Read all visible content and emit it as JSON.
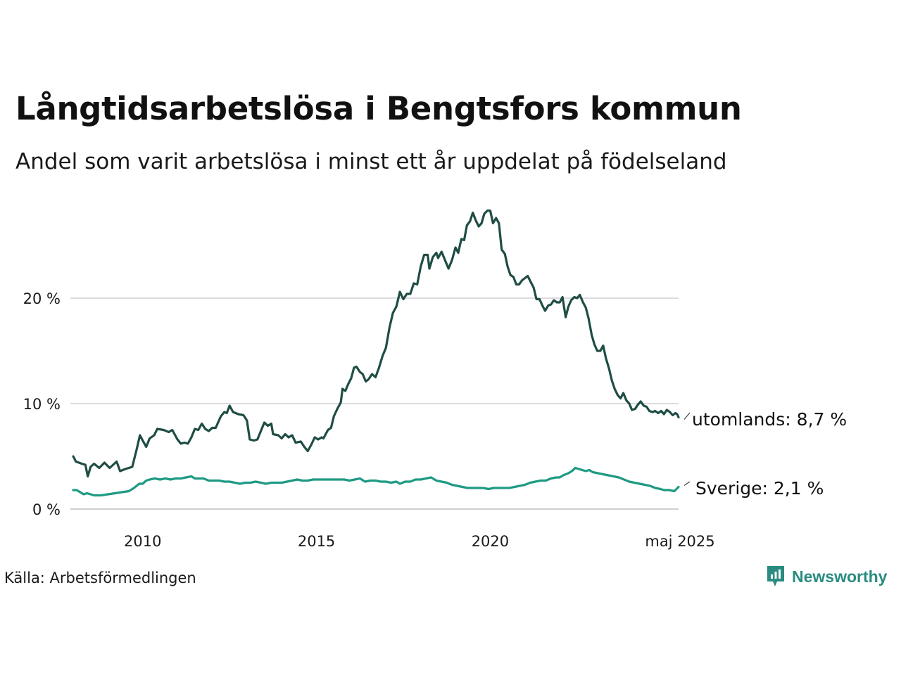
{
  "title": "Långtidsarbetslösa i Bengtsfors kommun",
  "subtitle": "Andel som varit arbetslösa i minst ett år uppdelat på födelseland",
  "source": "Källa: Arbetsförmedlingen",
  "brand": {
    "name": "Newsworthy",
    "icon": "newsworthy-logo-icon",
    "color": "#2a8c80"
  },
  "chart_data": {
    "type": "line",
    "x_ticks": [
      "2010",
      "2015",
      "2020",
      "maj 2025"
    ],
    "y_ticks": [
      "0 %",
      "10 %",
      "20 %"
    ],
    "ylim": [
      0,
      30
    ],
    "xlim": [
      2008.0,
      2025.42
    ],
    "grid": true,
    "series": [
      {
        "name": "utomlands",
        "end_label": "utomlands: 8,7 %",
        "color": "#1f4d45",
        "points": [
          [
            2008.0,
            5.0
          ],
          [
            2008.08,
            4.5
          ],
          [
            2008.25,
            4.3
          ],
          [
            2008.35,
            4.2
          ],
          [
            2008.42,
            3.1
          ],
          [
            2008.5,
            4.0
          ],
          [
            2008.6,
            4.3
          ],
          [
            2008.75,
            3.9
          ],
          [
            2008.9,
            4.4
          ],
          [
            2009.05,
            3.9
          ],
          [
            2009.25,
            4.5
          ],
          [
            2009.35,
            3.6
          ],
          [
            2009.5,
            3.8
          ],
          [
            2009.6,
            3.9
          ],
          [
            2009.7,
            4.0
          ],
          [
            2009.83,
            5.7
          ],
          [
            2009.92,
            7.0
          ],
          [
            2010.0,
            6.5
          ],
          [
            2010.1,
            5.9
          ],
          [
            2010.2,
            6.7
          ],
          [
            2010.33,
            7.0
          ],
          [
            2010.42,
            7.6
          ],
          [
            2010.6,
            7.5
          ],
          [
            2010.75,
            7.3
          ],
          [
            2010.85,
            7.5
          ],
          [
            2011.0,
            6.6
          ],
          [
            2011.1,
            6.2
          ],
          [
            2011.2,
            6.3
          ],
          [
            2011.3,
            6.2
          ],
          [
            2011.4,
            6.8
          ],
          [
            2011.5,
            7.6
          ],
          [
            2011.6,
            7.5
          ],
          [
            2011.7,
            8.1
          ],
          [
            2011.8,
            7.6
          ],
          [
            2011.9,
            7.4
          ],
          [
            2012.0,
            7.7
          ],
          [
            2012.1,
            7.7
          ],
          [
            2012.25,
            8.8
          ],
          [
            2012.35,
            9.2
          ],
          [
            2012.42,
            9.1
          ],
          [
            2012.5,
            9.8
          ],
          [
            2012.6,
            9.2
          ],
          [
            2012.75,
            9.0
          ],
          [
            2012.9,
            8.9
          ],
          [
            2013.0,
            8.4
          ],
          [
            2013.08,
            6.6
          ],
          [
            2013.2,
            6.5
          ],
          [
            2013.3,
            6.6
          ],
          [
            2013.4,
            7.4
          ],
          [
            2013.5,
            8.2
          ],
          [
            2013.6,
            7.9
          ],
          [
            2013.7,
            8.1
          ],
          [
            2013.75,
            7.1
          ],
          [
            2013.9,
            7.0
          ],
          [
            2014.0,
            6.7
          ],
          [
            2014.1,
            7.1
          ],
          [
            2014.2,
            6.8
          ],
          [
            2014.3,
            7.0
          ],
          [
            2014.4,
            6.3
          ],
          [
            2014.55,
            6.4
          ],
          [
            2014.65,
            5.9
          ],
          [
            2014.75,
            5.5
          ],
          [
            2014.85,
            6.1
          ],
          [
            2014.95,
            6.8
          ],
          [
            2015.05,
            6.6
          ],
          [
            2015.15,
            6.8
          ],
          [
            2015.2,
            6.7
          ],
          [
            2015.33,
            7.5
          ],
          [
            2015.42,
            7.7
          ],
          [
            2015.5,
            8.8
          ],
          [
            2015.6,
            9.5
          ],
          [
            2015.7,
            10.1
          ],
          [
            2015.75,
            11.4
          ],
          [
            2015.83,
            11.2
          ],
          [
            2015.92,
            11.9
          ],
          [
            2016.0,
            12.4
          ],
          [
            2016.08,
            13.4
          ],
          [
            2016.15,
            13.5
          ],
          [
            2016.25,
            13.0
          ],
          [
            2016.33,
            12.8
          ],
          [
            2016.42,
            12.1
          ],
          [
            2016.5,
            12.3
          ],
          [
            2016.6,
            12.8
          ],
          [
            2016.7,
            12.5
          ],
          [
            2016.8,
            13.4
          ],
          [
            2016.9,
            14.5
          ],
          [
            2017.0,
            15.3
          ],
          [
            2017.1,
            17.2
          ],
          [
            2017.2,
            18.6
          ],
          [
            2017.3,
            19.2
          ],
          [
            2017.4,
            20.6
          ],
          [
            2017.5,
            19.9
          ],
          [
            2017.6,
            20.4
          ],
          [
            2017.7,
            20.4
          ],
          [
            2017.8,
            21.4
          ],
          [
            2017.9,
            21.3
          ],
          [
            2018.0,
            23.0
          ],
          [
            2018.1,
            24.1
          ],
          [
            2018.2,
            24.1
          ],
          [
            2018.25,
            22.8
          ],
          [
            2018.35,
            23.9
          ],
          [
            2018.45,
            24.3
          ],
          [
            2018.5,
            23.8
          ],
          [
            2018.6,
            24.4
          ],
          [
            2018.7,
            23.6
          ],
          [
            2018.8,
            22.8
          ],
          [
            2018.9,
            23.6
          ],
          [
            2019.0,
            24.8
          ],
          [
            2019.08,
            24.3
          ],
          [
            2019.17,
            25.6
          ],
          [
            2019.25,
            25.5
          ],
          [
            2019.33,
            26.9
          ],
          [
            2019.42,
            27.3
          ],
          [
            2019.5,
            28.1
          ],
          [
            2019.58,
            27.4
          ],
          [
            2019.67,
            26.8
          ],
          [
            2019.75,
            27.1
          ],
          [
            2019.83,
            28.0
          ],
          [
            2019.92,
            28.3
          ],
          [
            2020.0,
            28.3
          ],
          [
            2020.08,
            27.1
          ],
          [
            2020.17,
            27.6
          ],
          [
            2020.25,
            27.1
          ],
          [
            2020.33,
            24.6
          ],
          [
            2020.42,
            24.2
          ],
          [
            2020.5,
            23.0
          ],
          [
            2020.58,
            22.2
          ],
          [
            2020.67,
            22.0
          ],
          [
            2020.75,
            21.3
          ],
          [
            2020.83,
            21.3
          ],
          [
            2020.92,
            21.7
          ],
          [
            2021.0,
            21.9
          ],
          [
            2021.08,
            22.1
          ],
          [
            2021.17,
            21.5
          ],
          [
            2021.25,
            21.0
          ],
          [
            2021.33,
            19.9
          ],
          [
            2021.42,
            19.9
          ],
          [
            2021.5,
            19.3
          ],
          [
            2021.58,
            18.8
          ],
          [
            2021.67,
            19.3
          ],
          [
            2021.75,
            19.4
          ],
          [
            2021.83,
            19.8
          ],
          [
            2021.92,
            19.6
          ],
          [
            2022.0,
            19.6
          ],
          [
            2022.08,
            20.1
          ],
          [
            2022.17,
            18.2
          ],
          [
            2022.25,
            19.2
          ],
          [
            2022.33,
            19.8
          ],
          [
            2022.42,
            20.1
          ],
          [
            2022.5,
            20.0
          ],
          [
            2022.58,
            20.3
          ],
          [
            2022.67,
            19.6
          ],
          [
            2022.75,
            19.1
          ],
          [
            2022.83,
            18.1
          ],
          [
            2022.92,
            16.5
          ],
          [
            2023.0,
            15.6
          ],
          [
            2023.08,
            15.0
          ],
          [
            2023.17,
            15.0
          ],
          [
            2023.25,
            15.5
          ],
          [
            2023.33,
            14.3
          ],
          [
            2023.42,
            13.3
          ],
          [
            2023.5,
            12.2
          ],
          [
            2023.58,
            11.4
          ],
          [
            2023.67,
            10.8
          ],
          [
            2023.75,
            10.5
          ],
          [
            2023.83,
            11.0
          ],
          [
            2023.92,
            10.3
          ],
          [
            2024.0,
            10.0
          ],
          [
            2024.08,
            9.4
          ],
          [
            2024.17,
            9.5
          ],
          [
            2024.25,
            9.9
          ],
          [
            2024.33,
            10.2
          ],
          [
            2024.42,
            9.8
          ],
          [
            2024.5,
            9.7
          ],
          [
            2024.58,
            9.3
          ],
          [
            2024.67,
            9.2
          ],
          [
            2024.75,
            9.3
          ],
          [
            2024.83,
            9.1
          ],
          [
            2024.92,
            9.3
          ],
          [
            2025.0,
            9.0
          ],
          [
            2025.08,
            9.4
          ],
          [
            2025.17,
            9.2
          ],
          [
            2025.25,
            8.9
          ],
          [
            2025.33,
            9.1
          ],
          [
            2025.38,
            9.0
          ],
          [
            2025.42,
            8.7
          ]
        ]
      },
      {
        "name": "Sverige",
        "end_label": "Sverige: 2,1 %",
        "color": "#1e9a84",
        "points": [
          [
            2008.0,
            1.8
          ],
          [
            2008.1,
            1.8
          ],
          [
            2008.2,
            1.6
          ],
          [
            2008.3,
            1.4
          ],
          [
            2008.4,
            1.5
          ],
          [
            2008.5,
            1.4
          ],
          [
            2008.6,
            1.3
          ],
          [
            2008.8,
            1.3
          ],
          [
            2009.0,
            1.4
          ],
          [
            2009.2,
            1.5
          ],
          [
            2009.4,
            1.6
          ],
          [
            2009.6,
            1.7
          ],
          [
            2009.75,
            2.0
          ],
          [
            2009.9,
            2.4
          ],
          [
            2010.0,
            2.4
          ],
          [
            2010.1,
            2.7
          ],
          [
            2010.2,
            2.8
          ],
          [
            2010.35,
            2.9
          ],
          [
            2010.5,
            2.8
          ],
          [
            2010.65,
            2.9
          ],
          [
            2010.8,
            2.8
          ],
          [
            2010.95,
            2.9
          ],
          [
            2011.1,
            2.9
          ],
          [
            2011.25,
            3.0
          ],
          [
            2011.4,
            3.1
          ],
          [
            2011.5,
            2.9
          ],
          [
            2011.6,
            2.9
          ],
          [
            2011.75,
            2.9
          ],
          [
            2011.9,
            2.7
          ],
          [
            2012.05,
            2.7
          ],
          [
            2012.2,
            2.7
          ],
          [
            2012.35,
            2.6
          ],
          [
            2012.5,
            2.6
          ],
          [
            2012.65,
            2.5
          ],
          [
            2012.8,
            2.4
          ],
          [
            2012.95,
            2.5
          ],
          [
            2013.1,
            2.5
          ],
          [
            2013.25,
            2.6
          ],
          [
            2013.4,
            2.5
          ],
          [
            2013.55,
            2.4
          ],
          [
            2013.7,
            2.5
          ],
          [
            2013.85,
            2.5
          ],
          [
            2014.0,
            2.5
          ],
          [
            2014.15,
            2.6
          ],
          [
            2014.3,
            2.7
          ],
          [
            2014.45,
            2.8
          ],
          [
            2014.6,
            2.7
          ],
          [
            2014.75,
            2.7
          ],
          [
            2014.9,
            2.8
          ],
          [
            2015.05,
            2.8
          ],
          [
            2015.2,
            2.8
          ],
          [
            2015.35,
            2.8
          ],
          [
            2015.5,
            2.8
          ],
          [
            2015.65,
            2.8
          ],
          [
            2015.8,
            2.8
          ],
          [
            2015.95,
            2.7
          ],
          [
            2016.1,
            2.8
          ],
          [
            2016.25,
            2.9
          ],
          [
            2016.4,
            2.6
          ],
          [
            2016.55,
            2.7
          ],
          [
            2016.7,
            2.7
          ],
          [
            2016.85,
            2.6
          ],
          [
            2017.0,
            2.6
          ],
          [
            2017.15,
            2.5
          ],
          [
            2017.3,
            2.6
          ],
          [
            2017.4,
            2.4
          ],
          [
            2017.55,
            2.6
          ],
          [
            2017.7,
            2.6
          ],
          [
            2017.85,
            2.8
          ],
          [
            2018.0,
            2.8
          ],
          [
            2018.15,
            2.9
          ],
          [
            2018.3,
            3.0
          ],
          [
            2018.45,
            2.7
          ],
          [
            2018.6,
            2.6
          ],
          [
            2018.75,
            2.5
          ],
          [
            2018.9,
            2.3
          ],
          [
            2019.05,
            2.2
          ],
          [
            2019.2,
            2.1
          ],
          [
            2019.35,
            2.0
          ],
          [
            2019.5,
            2.0
          ],
          [
            2019.65,
            2.0
          ],
          [
            2019.8,
            2.0
          ],
          [
            2019.95,
            1.9
          ],
          [
            2020.1,
            2.0
          ],
          [
            2020.25,
            2.0
          ],
          [
            2020.4,
            2.0
          ],
          [
            2020.55,
            2.0
          ],
          [
            2020.7,
            2.1
          ],
          [
            2020.85,
            2.2
          ],
          [
            2021.0,
            2.3
          ],
          [
            2021.15,
            2.5
          ],
          [
            2021.3,
            2.6
          ],
          [
            2021.45,
            2.7
          ],
          [
            2021.6,
            2.7
          ],
          [
            2021.75,
            2.9
          ],
          [
            2021.9,
            3.0
          ],
          [
            2022.0,
            3.0
          ],
          [
            2022.1,
            3.2
          ],
          [
            2022.25,
            3.4
          ],
          [
            2022.35,
            3.6
          ],
          [
            2022.45,
            3.9
          ],
          [
            2022.55,
            3.8
          ],
          [
            2022.65,
            3.7
          ],
          [
            2022.75,
            3.6
          ],
          [
            2022.85,
            3.7
          ],
          [
            2022.95,
            3.5
          ],
          [
            2023.1,
            3.4
          ],
          [
            2023.25,
            3.3
          ],
          [
            2023.4,
            3.2
          ],
          [
            2023.55,
            3.1
          ],
          [
            2023.7,
            3.0
          ],
          [
            2023.85,
            2.8
          ],
          [
            2024.0,
            2.6
          ],
          [
            2024.15,
            2.5
          ],
          [
            2024.3,
            2.4
          ],
          [
            2024.45,
            2.3
          ],
          [
            2024.6,
            2.2
          ],
          [
            2024.75,
            2.0
          ],
          [
            2024.9,
            1.9
          ],
          [
            2025.0,
            1.8
          ],
          [
            2025.15,
            1.8
          ],
          [
            2025.3,
            1.7
          ],
          [
            2025.42,
            2.1
          ]
        ]
      }
    ]
  }
}
